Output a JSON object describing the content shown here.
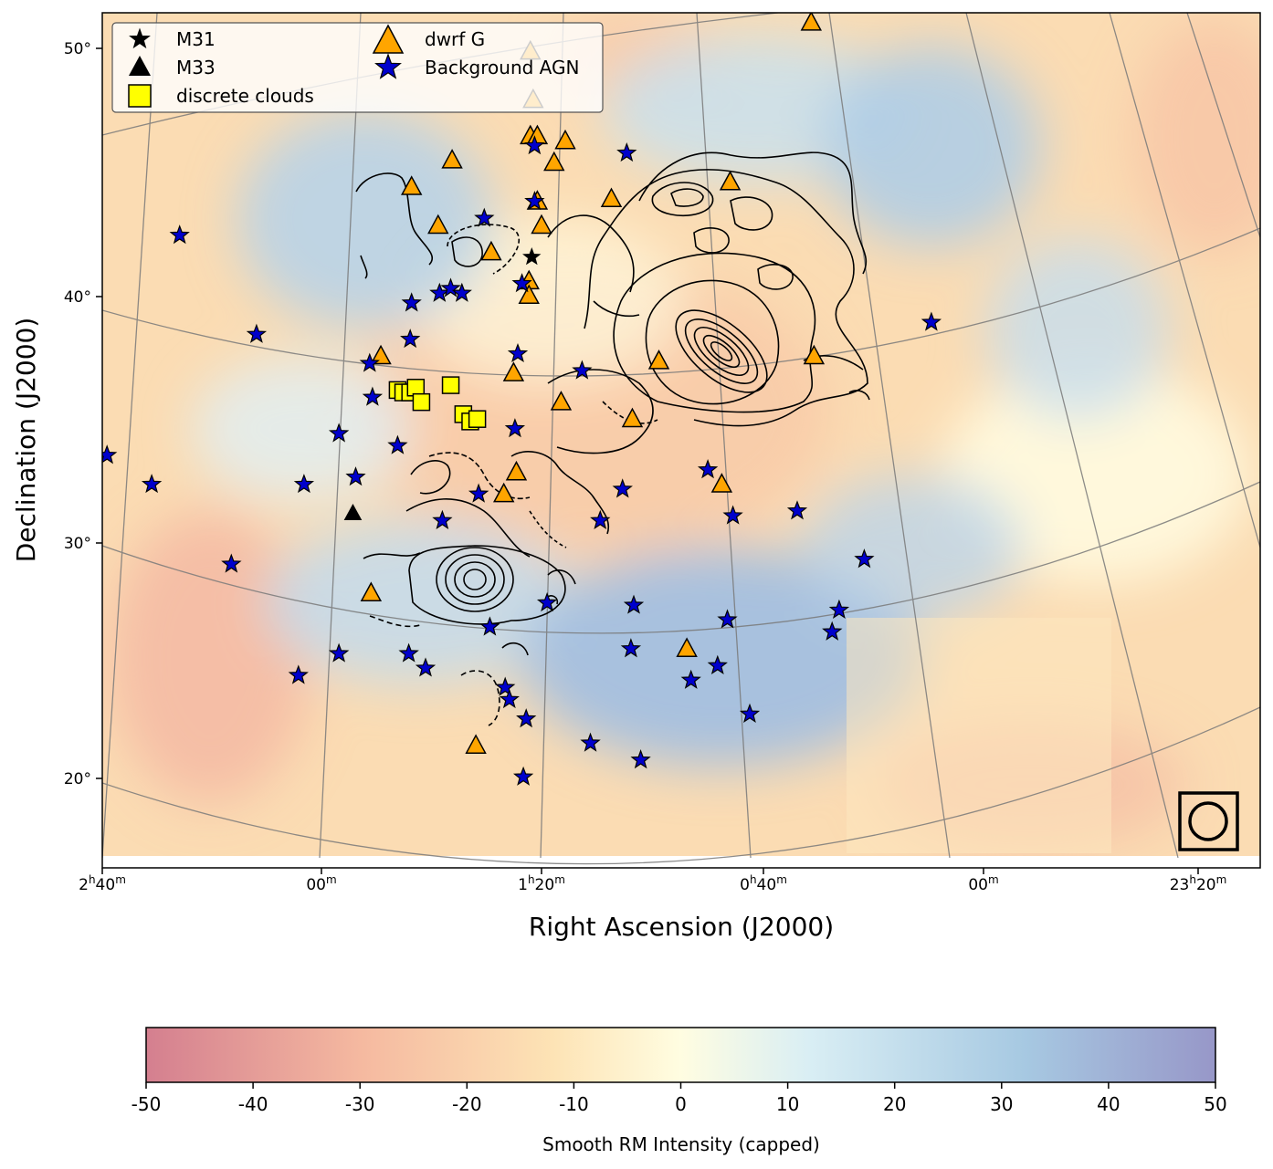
{
  "chart_data": {
    "type": "scatter",
    "xlabel": "Right Ascension (J2000)",
    "ylabel": "Declination (J2000)",
    "ra_ticks": [
      {
        "h": "2",
        "m": "40"
      },
      {
        "h": "",
        "m": "00"
      },
      {
        "h": "1",
        "m": "20"
      },
      {
        "h": "0",
        "m": "40"
      },
      {
        "h": "",
        "m": "00"
      },
      {
        "h": "23",
        "m": "20"
      }
    ],
    "dec_ticks": [
      "50°",
      "40°",
      "30°",
      "20°"
    ],
    "legend": [
      {
        "label": "M31",
        "marker": "star",
        "color": "#000000"
      },
      {
        "label": "M33",
        "marker": "triangle",
        "color": "#000000"
      },
      {
        "label": "discrete clouds",
        "marker": "square",
        "color": "#ffff00"
      },
      {
        "label": "dwrf G",
        "marker": "triangle",
        "color": "#ffa500"
      },
      {
        "label": "Background AGN",
        "marker": "star",
        "color": "#0000cc"
      }
    ],
    "colorbar": {
      "label": "Smooth RM Intensity (capped)",
      "range": [
        -50,
        50
      ],
      "ticks": [
        "-50",
        "-40",
        "-30",
        "-20",
        "-10",
        "0",
        "10",
        "20",
        "30",
        "40",
        "50"
      ],
      "colors": [
        "#d47f8f",
        "#f5b9a0",
        "#fde3b5",
        "#fffde1",
        "#d9eef4",
        "#a7c9e2",
        "#9797c8"
      ]
    },
    "series": [
      {
        "name": "M31",
        "points": [
          [
            10.7,
            41.3
          ]
        ]
      },
      {
        "name": "M33",
        "points": [
          [
            23.5,
            30.7
          ]
        ]
      },
      {
        "name": "discrete clouds",
        "points": [
          [
            20.3,
            35.8
          ],
          [
            19.9,
            35.7
          ],
          [
            19.4,
            35.7
          ],
          [
            19.0,
            35.9
          ],
          [
            18.6,
            35.3
          ],
          [
            16.5,
            36.0
          ],
          [
            15.6,
            34.8
          ],
          [
            15.1,
            34.5
          ],
          [
            14.6,
            34.6
          ]
        ]
      },
      {
        "name": "dwrf G",
        "points": [
          [
            10.8,
            49.8
          ],
          [
            10.6,
            47.8
          ],
          [
            10.8,
            46.3
          ],
          [
            10.3,
            46.3
          ],
          [
            8.3,
            46.1
          ],
          [
            9.1,
            45.2
          ],
          [
            16.4,
            45.3
          ],
          [
            19.3,
            44.2
          ],
          [
            17.4,
            42.6
          ],
          [
            13.6,
            41.5
          ],
          [
            10.3,
            43.6
          ],
          [
            10.0,
            42.6
          ],
          [
            10.9,
            40.3
          ],
          [
            10.9,
            39.7
          ],
          [
            12.0,
            36.5
          ],
          [
            21.5,
            37.2
          ],
          [
            8.6,
            35.3
          ],
          [
            1.6,
            37.0
          ],
          [
            3.5,
            34.6
          ],
          [
            11.8,
            32.4
          ],
          [
            12.7,
            31.5
          ],
          [
            -2.9,
            31.9
          ],
          [
            22.2,
            27.4
          ],
          [
            14.7,
            21.1
          ],
          [
            -0.4,
            25.1
          ],
          [
            -3.5,
            44.4
          ],
          [
            5.0,
            43.7
          ],
          [
            -9.3,
            51.0
          ],
          [
            -9.5,
            37.2
          ]
        ]
      },
      {
        "name": "Background AGN",
        "points": [
          [
            35.9,
            42.2
          ],
          [
            30.4,
            38.1
          ],
          [
            41.1,
            33.1
          ],
          [
            37.9,
            31.9
          ],
          [
            32.2,
            28.6
          ],
          [
            43.0,
            28.2
          ],
          [
            27.0,
            31.9
          ],
          [
            23.3,
            32.2
          ],
          [
            24.5,
            34.0
          ],
          [
            22.1,
            35.5
          ],
          [
            22.3,
            36.9
          ],
          [
            19.4,
            37.9
          ],
          [
            19.3,
            39.4
          ],
          [
            17.3,
            39.8
          ],
          [
            16.5,
            40.0
          ],
          [
            15.7,
            39.8
          ],
          [
            14.1,
            42.9
          ],
          [
            11.4,
            40.2
          ],
          [
            10.5,
            45.9
          ],
          [
            10.5,
            43.6
          ],
          [
            3.9,
            45.6
          ],
          [
            11.7,
            37.3
          ],
          [
            7.1,
            36.6
          ],
          [
            11.9,
            34.2
          ],
          [
            14.5,
            31.5
          ],
          [
            20.3,
            33.5
          ],
          [
            17.1,
            30.4
          ],
          [
            5.8,
            30.4
          ],
          [
            4.2,
            31.7
          ],
          [
            3.4,
            26.9
          ],
          [
            9.6,
            27.0
          ],
          [
            3.6,
            25.1
          ],
          [
            -1.9,
            32.5
          ],
          [
            -3.7,
            30.6
          ],
          [
            -8.3,
            30.8
          ],
          [
            -10.8,
            25.8
          ],
          [
            -13.1,
            28.8
          ],
          [
            -17.9,
            38.6
          ],
          [
            12.6,
            23.5
          ],
          [
            11.1,
            22.2
          ],
          [
            12.3,
            23.0
          ],
          [
            13.7,
            26.0
          ],
          [
            18.3,
            24.3
          ],
          [
            19.5,
            24.9
          ],
          [
            24.5,
            24.9
          ],
          [
            27.4,
            24.0
          ],
          [
            6.5,
            21.2
          ],
          [
            11.3,
            19.8
          ],
          [
            2.9,
            20.5
          ],
          [
            -4.9,
            22.4
          ],
          [
            -2.6,
            24.4
          ],
          [
            -3.3,
            26.3
          ],
          [
            -11.3,
            26.7
          ],
          [
            -0.7,
            23.8
          ]
        ]
      }
    ]
  }
}
